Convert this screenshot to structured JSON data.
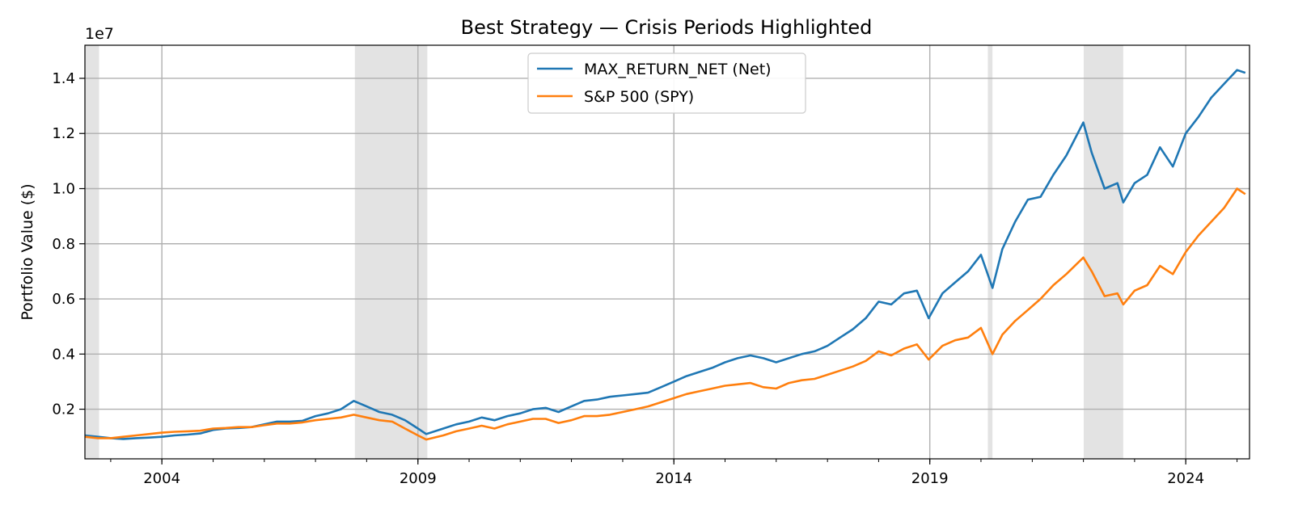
{
  "chart_data": {
    "type": "line",
    "title": "Best Strategy — Crisis Periods Highlighted",
    "xlabel": "",
    "ylabel": "Portfolio Value ($)",
    "y_offset_label": "1e7",
    "xlim": [
      "2002-07-01",
      "2025-03-31"
    ],
    "ylim": [
      0.2,
      15.2
    ],
    "y_scale_note": "values in units of 1e6",
    "x_ticks": [
      {
        "date": "2004-01-01",
        "label": "2004"
      },
      {
        "date": "2009-01-01",
        "label": "2009"
      },
      {
        "date": "2014-01-01",
        "label": "2014"
      },
      {
        "date": "2019-01-01",
        "label": "2019"
      },
      {
        "date": "2024-01-01",
        "label": "2024"
      }
    ],
    "y_ticks": [
      {
        "value": 2,
        "label": "0.2"
      },
      {
        "value": 4,
        "label": "0.4"
      },
      {
        "value": 6,
        "label": "0.6"
      },
      {
        "value": 8,
        "label": "0.8"
      },
      {
        "value": 10,
        "label": "1.0"
      },
      {
        "value": 12,
        "label": "1.2"
      },
      {
        "value": 14,
        "label": "1.4"
      }
    ],
    "grid": true,
    "legend_position": "top-center",
    "crisis_periods": [
      {
        "start": "2002-07-01",
        "end": "2002-10-10"
      },
      {
        "start": "2007-10-09",
        "end": "2009-03-09"
      },
      {
        "start": "2020-02-19",
        "end": "2020-03-23"
      },
      {
        "start": "2022-01-03",
        "end": "2022-10-12"
      }
    ],
    "series": [
      {
        "name": "MAX_RETURN_NET (Net)",
        "color": "#1f77b4",
        "points": [
          [
            "2002-07-01",
            1.05
          ],
          [
            "2002-10-01",
            1.0
          ],
          [
            "2003-01-01",
            0.95
          ],
          [
            "2003-04-01",
            0.92
          ],
          [
            "2003-07-01",
            0.95
          ],
          [
            "2003-10-01",
            0.97
          ],
          [
            "2004-01-01",
            1.0
          ],
          [
            "2004-04-01",
            1.05
          ],
          [
            "2004-07-01",
            1.08
          ],
          [
            "2004-10-01",
            1.12
          ],
          [
            "2005-01-01",
            1.25
          ],
          [
            "2005-04-01",
            1.3
          ],
          [
            "2005-07-01",
            1.32
          ],
          [
            "2005-10-01",
            1.35
          ],
          [
            "2006-01-01",
            1.45
          ],
          [
            "2006-04-01",
            1.55
          ],
          [
            "2006-07-01",
            1.55
          ],
          [
            "2006-10-01",
            1.58
          ],
          [
            "2007-01-01",
            1.75
          ],
          [
            "2007-04-01",
            1.85
          ],
          [
            "2007-07-01",
            2.0
          ],
          [
            "2007-10-01",
            2.3
          ],
          [
            "2008-01-01",
            2.1
          ],
          [
            "2008-04-01",
            1.9
          ],
          [
            "2008-07-01",
            1.8
          ],
          [
            "2008-10-01",
            1.6
          ],
          [
            "2009-01-01",
            1.3
          ],
          [
            "2009-03-01",
            1.1
          ],
          [
            "2009-07-01",
            1.3
          ],
          [
            "2009-10-01",
            1.45
          ],
          [
            "2010-01-01",
            1.55
          ],
          [
            "2010-04-01",
            1.7
          ],
          [
            "2010-07-01",
            1.6
          ],
          [
            "2010-10-01",
            1.75
          ],
          [
            "2011-01-01",
            1.85
          ],
          [
            "2011-04-01",
            2.0
          ],
          [
            "2011-07-01",
            2.05
          ],
          [
            "2011-10-01",
            1.9
          ],
          [
            "2012-01-01",
            2.1
          ],
          [
            "2012-04-01",
            2.3
          ],
          [
            "2012-07-01",
            2.35
          ],
          [
            "2012-10-01",
            2.45
          ],
          [
            "2013-01-01",
            2.5
          ],
          [
            "2013-04-01",
            2.55
          ],
          [
            "2013-07-01",
            2.6
          ],
          [
            "2013-10-01",
            2.8
          ],
          [
            "2014-01-01",
            3.0
          ],
          [
            "2014-04-01",
            3.2
          ],
          [
            "2014-07-01",
            3.35
          ],
          [
            "2014-10-01",
            3.5
          ],
          [
            "2015-01-01",
            3.7
          ],
          [
            "2015-04-01",
            3.85
          ],
          [
            "2015-07-01",
            3.95
          ],
          [
            "2015-10-01",
            3.85
          ],
          [
            "2016-01-01",
            3.7
          ],
          [
            "2016-04-01",
            3.85
          ],
          [
            "2016-07-01",
            4.0
          ],
          [
            "2016-10-01",
            4.1
          ],
          [
            "2017-01-01",
            4.3
          ],
          [
            "2017-04-01",
            4.6
          ],
          [
            "2017-07-01",
            4.9
          ],
          [
            "2017-10-01",
            5.3
          ],
          [
            "2018-01-01",
            5.9
          ],
          [
            "2018-04-01",
            5.8
          ],
          [
            "2018-07-01",
            6.2
          ],
          [
            "2018-10-01",
            6.3
          ],
          [
            "2018-12-24",
            5.3
          ],
          [
            "2019-04-01",
            6.2
          ],
          [
            "2019-07-01",
            6.6
          ],
          [
            "2019-10-01",
            7.0
          ],
          [
            "2020-01-01",
            7.6
          ],
          [
            "2020-03-23",
            6.4
          ],
          [
            "2020-06-01",
            7.8
          ],
          [
            "2020-09-01",
            8.8
          ],
          [
            "2020-12-01",
            9.6
          ],
          [
            "2021-03-01",
            9.7
          ],
          [
            "2021-06-01",
            10.5
          ],
          [
            "2021-09-01",
            11.2
          ],
          [
            "2021-12-31",
            12.4
          ],
          [
            "2022-03-01",
            11.3
          ],
          [
            "2022-06-01",
            10.0
          ],
          [
            "2022-09-01",
            10.2
          ],
          [
            "2022-10-12",
            9.5
          ],
          [
            "2023-01-01",
            10.2
          ],
          [
            "2023-04-01",
            10.5
          ],
          [
            "2023-07-01",
            11.5
          ],
          [
            "2023-10-01",
            10.8
          ],
          [
            "2024-01-01",
            12.0
          ],
          [
            "2024-04-01",
            12.6
          ],
          [
            "2024-07-01",
            13.3
          ],
          [
            "2024-10-01",
            13.8
          ],
          [
            "2025-01-01",
            14.3
          ],
          [
            "2025-03-01",
            14.2
          ]
        ]
      },
      {
        "name": "S&P 500 (SPY)",
        "color": "#ff7f0e",
        "points": [
          [
            "2002-07-01",
            1.0
          ],
          [
            "2002-10-01",
            0.95
          ],
          [
            "2003-01-01",
            0.95
          ],
          [
            "2003-04-01",
            1.0
          ],
          [
            "2003-07-01",
            1.05
          ],
          [
            "2003-10-01",
            1.1
          ],
          [
            "2004-01-01",
            1.15
          ],
          [
            "2004-04-01",
            1.18
          ],
          [
            "2004-07-01",
            1.2
          ],
          [
            "2004-10-01",
            1.22
          ],
          [
            "2005-01-01",
            1.3
          ],
          [
            "2005-04-01",
            1.32
          ],
          [
            "2005-07-01",
            1.35
          ],
          [
            "2005-10-01",
            1.35
          ],
          [
            "2006-01-01",
            1.42
          ],
          [
            "2006-04-01",
            1.48
          ],
          [
            "2006-07-01",
            1.48
          ],
          [
            "2006-10-01",
            1.52
          ],
          [
            "2007-01-01",
            1.6
          ],
          [
            "2007-04-01",
            1.65
          ],
          [
            "2007-07-01",
            1.7
          ],
          [
            "2007-10-01",
            1.8
          ],
          [
            "2008-01-01",
            1.7
          ],
          [
            "2008-04-01",
            1.6
          ],
          [
            "2008-07-01",
            1.55
          ],
          [
            "2008-10-01",
            1.3
          ],
          [
            "2009-01-01",
            1.05
          ],
          [
            "2009-03-01",
            0.9
          ],
          [
            "2009-07-01",
            1.05
          ],
          [
            "2009-10-01",
            1.2
          ],
          [
            "2010-01-01",
            1.3
          ],
          [
            "2010-04-01",
            1.4
          ],
          [
            "2010-07-01",
            1.3
          ],
          [
            "2010-10-01",
            1.45
          ],
          [
            "2011-01-01",
            1.55
          ],
          [
            "2011-04-01",
            1.65
          ],
          [
            "2011-07-01",
            1.65
          ],
          [
            "2011-10-01",
            1.5
          ],
          [
            "2012-01-01",
            1.6
          ],
          [
            "2012-04-01",
            1.75
          ],
          [
            "2012-07-01",
            1.75
          ],
          [
            "2012-10-01",
            1.8
          ],
          [
            "2013-01-01",
            1.9
          ],
          [
            "2013-04-01",
            2.0
          ],
          [
            "2013-07-01",
            2.1
          ],
          [
            "2013-10-01",
            2.25
          ],
          [
            "2014-01-01",
            2.4
          ],
          [
            "2014-04-01",
            2.55
          ],
          [
            "2014-07-01",
            2.65
          ],
          [
            "2014-10-01",
            2.75
          ],
          [
            "2015-01-01",
            2.85
          ],
          [
            "2015-04-01",
            2.9
          ],
          [
            "2015-07-01",
            2.95
          ],
          [
            "2015-10-01",
            2.8
          ],
          [
            "2016-01-01",
            2.75
          ],
          [
            "2016-04-01",
            2.95
          ],
          [
            "2016-07-01",
            3.05
          ],
          [
            "2016-10-01",
            3.1
          ],
          [
            "2017-01-01",
            3.25
          ],
          [
            "2017-04-01",
            3.4
          ],
          [
            "2017-07-01",
            3.55
          ],
          [
            "2017-10-01",
            3.75
          ],
          [
            "2018-01-01",
            4.1
          ],
          [
            "2018-04-01",
            3.95
          ],
          [
            "2018-07-01",
            4.2
          ],
          [
            "2018-10-01",
            4.35
          ],
          [
            "2018-12-24",
            3.8
          ],
          [
            "2019-04-01",
            4.3
          ],
          [
            "2019-07-01",
            4.5
          ],
          [
            "2019-10-01",
            4.6
          ],
          [
            "2020-01-01",
            4.95
          ],
          [
            "2020-03-23",
            4.0
          ],
          [
            "2020-06-01",
            4.7
          ],
          [
            "2020-09-01",
            5.2
          ],
          [
            "2020-12-01",
            5.6
          ],
          [
            "2021-03-01",
            6.0
          ],
          [
            "2021-06-01",
            6.5
          ],
          [
            "2021-09-01",
            6.9
          ],
          [
            "2021-12-31",
            7.5
          ],
          [
            "2022-03-01",
            7.0
          ],
          [
            "2022-06-01",
            6.1
          ],
          [
            "2022-09-01",
            6.2
          ],
          [
            "2022-10-12",
            5.8
          ],
          [
            "2023-01-01",
            6.3
          ],
          [
            "2023-04-01",
            6.5
          ],
          [
            "2023-07-01",
            7.2
          ],
          [
            "2023-10-01",
            6.9
          ],
          [
            "2024-01-01",
            7.7
          ],
          [
            "2024-04-01",
            8.3
          ],
          [
            "2024-07-01",
            8.8
          ],
          [
            "2024-10-01",
            9.3
          ],
          [
            "2025-01-01",
            10.0
          ],
          [
            "2025-03-01",
            9.8
          ]
        ]
      }
    ]
  }
}
